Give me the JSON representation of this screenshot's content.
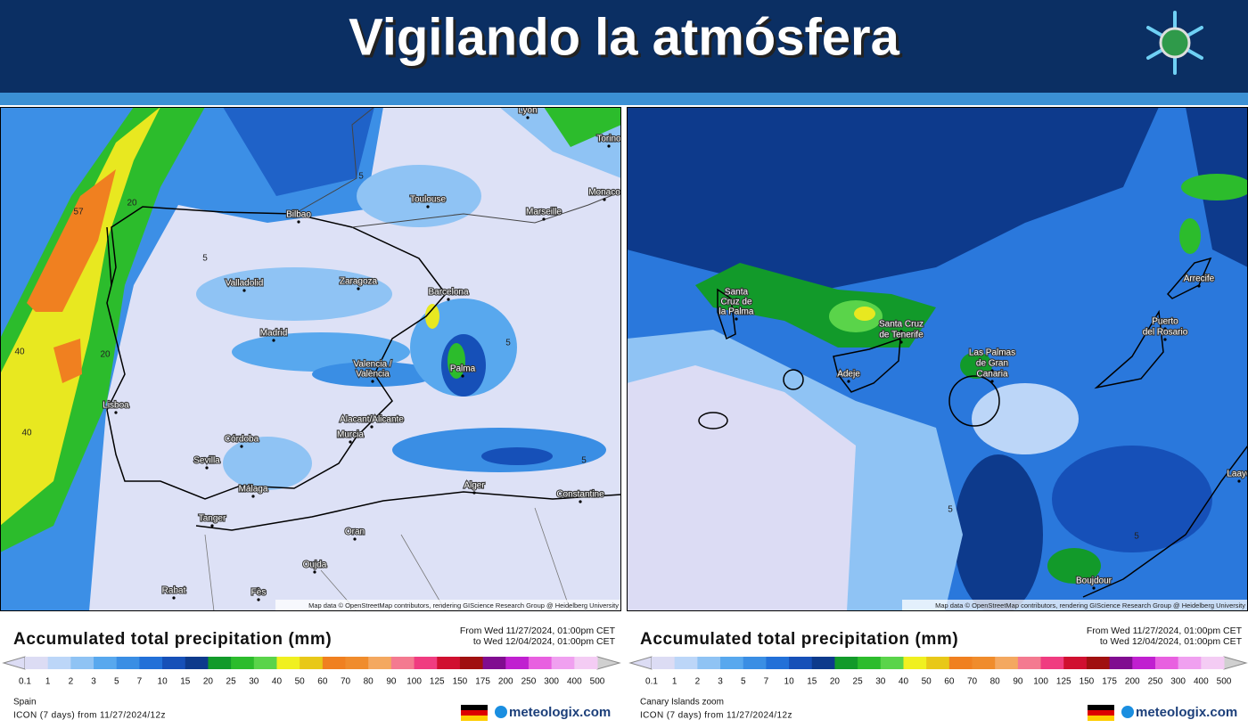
{
  "header": {
    "title": "Vigilando la atmósfera"
  },
  "scale": {
    "ticks": [
      "0.1",
      "1",
      "2",
      "3",
      "5",
      "7",
      "10",
      "15",
      "20",
      "25",
      "30",
      "40",
      "50",
      "60",
      "70",
      "80",
      "90",
      "100",
      "125",
      "150",
      "175",
      "200",
      "250",
      "300",
      "400",
      "500"
    ],
    "colors": [
      "#dcdcf4",
      "#bcd6f8",
      "#8fc3f4",
      "#58a8ee",
      "#3a8ee4",
      "#2270d8",
      "#1650b8",
      "#0d3a8c",
      "#129a2a",
      "#2cbc2c",
      "#5ad44a",
      "#f0f020",
      "#e8c818",
      "#f08020",
      "#f08c2c",
      "#f4a860",
      "#f47a90",
      "#f03c80",
      "#d01030",
      "#a01010",
      "#800c90",
      "#c020d0",
      "#e860e0",
      "#f0a0f0",
      "#f4ccf4",
      "#d0d0d0"
    ]
  },
  "panels": [
    {
      "labels": [
        "Lyon",
        "Torino",
        "Toulouse",
        "Monaco",
        "Marseille",
        "Bilbao",
        "Valladolid",
        "Zaragoza",
        "Barcelona",
        "Madrid",
        "Valencia /",
        "València",
        "Palma",
        "Lisboa",
        "Alacant/Alicante",
        "Murcia",
        "Córdoba",
        "Sevilla",
        "Málaga",
        "Tanger",
        "Alger",
        "Constantine",
        "Oran",
        "Oujda",
        "Rabat",
        "Fès"
      ],
      "contours": [
        "57",
        "20",
        "40",
        "40",
        "20",
        "5",
        "5",
        "5",
        "5"
      ],
      "attribution": "Map data © OpenStreetMap contributors, rendering GIScience Research Group @ Heidelberg University",
      "legend": {
        "title": "Accumulated total precipitation (mm)",
        "from": "From Wed 11/27/2024, 01:00pm CET",
        "to": "to Wed 12/04/2024, 01:00pm CET",
        "region": "Spain",
        "model": "ICON (7 days) from 11/27/2024/12z",
        "brand": "meteologix.com"
      }
    },
    {
      "labels": [
        "Santa",
        "Cruz de",
        "la Palma",
        "Santa Cruz",
        "de Tenerife",
        "Adeje",
        "Las Palmas",
        "de Gran",
        "Canaria",
        "Arrecife",
        "Puerto",
        "del Rosario",
        "Boujdour",
        "Laayo"
      ],
      "contours": [
        "5",
        "5"
      ],
      "attribution": "Map data © OpenStreetMap contributors, rendering GIScience Research Group @ Heidelberg University",
      "legend": {
        "title": "Accumulated total precipitation (mm)",
        "from": "From Wed 11/27/2024, 01:00pm CET",
        "to": "to Wed 12/04/2024, 01:00pm CET",
        "region": "Canary Islands zoom",
        "model": "ICON (7 days) from 11/27/2024/12z",
        "brand": "meteologix.com"
      }
    }
  ]
}
